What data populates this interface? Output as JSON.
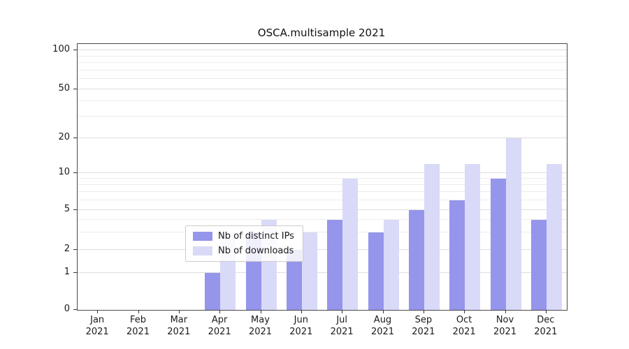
{
  "title": "OSCA.multisample 2021",
  "colors": {
    "ips_bar": "#9595ec",
    "downloads_bar": "#d9d9f8",
    "axis": "#4a4a4a",
    "major_grid": "#dedede",
    "minor_grid": "#ececec",
    "text": "#1a1a1a"
  },
  "chart_data": {
    "type": "bar",
    "title": "OSCA.multisample 2021",
    "categories": [
      "Jan 2021",
      "Feb 2021",
      "Mar 2021",
      "Apr 2021",
      "May 2021",
      "Jun 2021",
      "Jul 2021",
      "Aug 2021",
      "Sep 2021",
      "Oct 2021",
      "Nov 2021",
      "Dec 2021"
    ],
    "category_months": [
      "Jan",
      "Feb",
      "Mar",
      "Apr",
      "May",
      "Jun",
      "Jul",
      "Aug",
      "Sep",
      "Oct",
      "Nov",
      "Dec"
    ],
    "category_year": "2021",
    "series": [
      {
        "name": "Nb of distinct IPs",
        "color": "#9595ec",
        "values": [
          0,
          0,
          0,
          1,
          3,
          2,
          4,
          3,
          5,
          6,
          9,
          4
        ]
      },
      {
        "name": "Nb of downloads",
        "color": "#d9d9f8",
        "values": [
          0,
          0,
          0,
          3,
          4,
          3,
          9,
          4,
          12,
          12,
          20,
          12
        ]
      }
    ],
    "y_axis": {
      "scale": "symlog",
      "ticks": [
        0,
        1,
        2,
        5,
        10,
        20,
        50,
        100
      ],
      "minor_gridlines": [
        3,
        4,
        6,
        7,
        8,
        9,
        30,
        40,
        60,
        70,
        80,
        90
      ]
    },
    "grid": "on",
    "legend_position": "lower center"
  }
}
